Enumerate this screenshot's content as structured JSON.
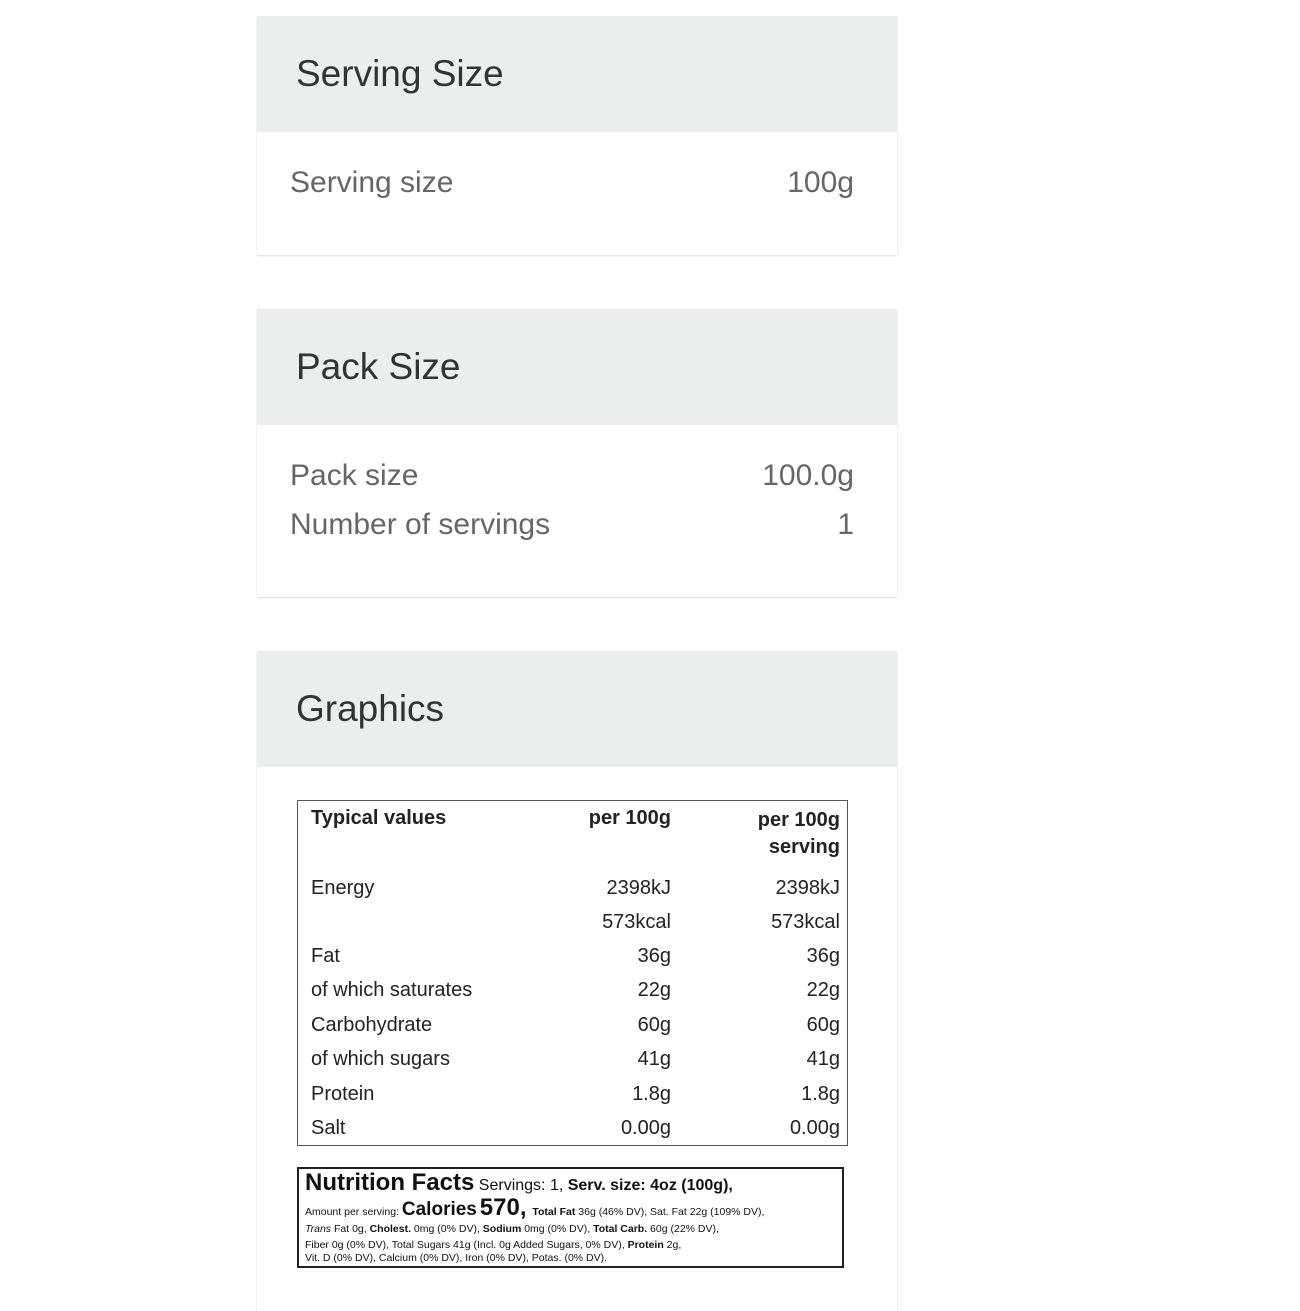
{
  "serving": {
    "title": "Serving Size",
    "rows": [
      {
        "label": "Serving size",
        "value": "100g"
      }
    ]
  },
  "pack": {
    "title": "Pack Size",
    "rows": [
      {
        "label": "Pack size",
        "value": "100.0g"
      },
      {
        "label": "Number of servings",
        "value": "1"
      }
    ]
  },
  "graphics": {
    "title": "Graphics",
    "table": {
      "headers": [
        "Typical values",
        "per 100g",
        "per 100g serving"
      ],
      "rows": [
        [
          "Energy",
          "2398kJ",
          "2398kJ"
        ],
        [
          "",
          "573kcal",
          "573kcal"
        ],
        [
          "Fat",
          "36g",
          "36g"
        ],
        [
          "of which saturates",
          "22g",
          "22g"
        ],
        [
          "Carbohydrate",
          "60g",
          "60g"
        ],
        [
          "of which sugars",
          "41g",
          "41g"
        ],
        [
          "Protein",
          "1.8g",
          "1.8g"
        ],
        [
          "Salt",
          "0.00g",
          "0.00g"
        ]
      ]
    },
    "label": {
      "title": "Nutrition Facts",
      "servings": "Servings:  1,",
      "serv_size_label": "Serv. size:",
      "serv_size": "4oz (100g),",
      "amount": "Amount per serving:",
      "calories_label": "Calories",
      "calories": "570,",
      "line2a": "Total Fat",
      "line2b": " 36g (46% DV), Sat. Fat 22g (109% DV),",
      "line3": [
        {
          "t": "Trans",
          "s": "i"
        },
        {
          "t": " Fat 0g, "
        },
        {
          "t": "Cholest.",
          "s": "b"
        },
        {
          "t": " 0mg (0% DV), "
        },
        {
          "t": "Sodium",
          "s": "b"
        },
        {
          "t": " 0mg (0% DV), "
        },
        {
          "t": "Total Carb.",
          "s": "b"
        },
        {
          "t": " 60g (22% DV),"
        }
      ],
      "line4a": "Fiber 0g (0% DV), Total Sugars 41g (Incl. 0g Added Sugars, 0% DV), ",
      "line4b": "Protein",
      "line4c": " 2g,",
      "line5": "Vit. D (0% DV), Calcium (0% DV), Iron (0% DV), Potas. (0% DV)."
    }
  }
}
